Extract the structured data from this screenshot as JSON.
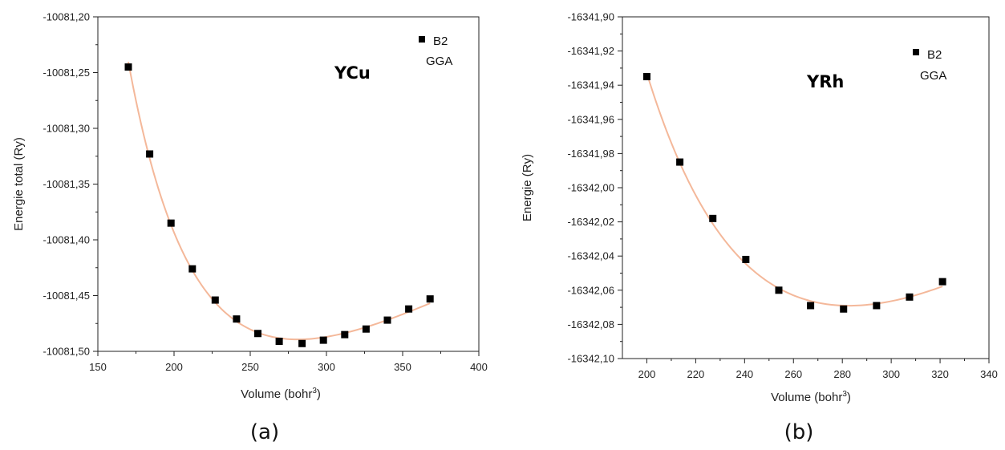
{
  "chart_data": [
    {
      "type": "scatter",
      "panel_label": "(a)",
      "compound": "YCu",
      "legend": {
        "marker_label": "B2",
        "method": "GGA",
        "placement": "top-right"
      },
      "xlabel": "Volume (bohr",
      "xlabel_sup": "3",
      "xlabel_end": ")",
      "ylabel": "Energie total (Ry)",
      "xlim": [
        150,
        400
      ],
      "ylim": [
        -10081.5,
        -10081.2
      ],
      "xticks": [
        "150",
        "200",
        "250",
        "300",
        "350",
        "400"
      ],
      "xtick_values": [
        150,
        200,
        250,
        300,
        350,
        400
      ],
      "yticks": [
        "-10081,20",
        "-10081,25",
        "-10081,30",
        "-10081,35",
        "-10081,40",
        "-10081,45",
        "-10081,50"
      ],
      "ytick_values": [
        -10081.2,
        -10081.25,
        -10081.3,
        -10081.35,
        -10081.4,
        -10081.45,
        -10081.5
      ],
      "series": [
        {
          "x": [
            170,
            184,
            198,
            212,
            227,
            241,
            255,
            269,
            284,
            298,
            312,
            326,
            340,
            354,
            368
          ],
          "y": [
            -10081.245,
            -10081.323,
            -10081.385,
            -10081.426,
            -10081.454,
            -10081.471,
            -10081.484,
            -10081.491,
            -10081.493,
            -10081.49,
            -10081.485,
            -10081.48,
            -10081.472,
            -10081.462,
            -10081.453
          ]
        }
      ],
      "marker_color": "#000000",
      "fit_color": "#f4b89a",
      "grid": false
    },
    {
      "type": "scatter",
      "panel_label": "(b)",
      "compound": "YRh",
      "legend": {
        "marker_label": "B2",
        "method": "GGA",
        "placement": "top-right"
      },
      "xlabel": "Volume (bohr",
      "xlabel_sup": "3",
      "xlabel_end": ")",
      "ylabel": "Energie (Ry)",
      "xlim": [
        190,
        340
      ],
      "ylim": [
        -16342.1,
        -16341.9
      ],
      "xticks": [
        "200",
        "220",
        "240",
        "260",
        "280",
        "300",
        "320",
        "340"
      ],
      "xtick_values": [
        200,
        220,
        240,
        260,
        280,
        300,
        320,
        340
      ],
      "yticks": [
        "-16341,90",
        "-16341,92",
        "-16341,94",
        "-16341,96",
        "-16341,98",
        "-16342,00",
        "-16342,02",
        "-16342,04",
        "-16342,06",
        "-16342,08",
        "-16342,10"
      ],
      "ytick_values": [
        -16341.9,
        -16341.92,
        -16341.94,
        -16341.96,
        -16341.98,
        -16342.0,
        -16342.02,
        -16342.04,
        -16342.06,
        -16342.08,
        -16342.1
      ],
      "series": [
        {
          "x": [
            200,
            213.5,
            227,
            240.5,
            254,
            267,
            280.5,
            294,
            307.5,
            321
          ],
          "y": [
            -16341.935,
            -16341.985,
            -16342.018,
            -16342.042,
            -16342.06,
            -16342.069,
            -16342.071,
            -16342.069,
            -16342.064,
            -16342.055
          ]
        }
      ],
      "marker_color": "#000000",
      "fit_color": "#f4b89a",
      "grid": false
    }
  ]
}
